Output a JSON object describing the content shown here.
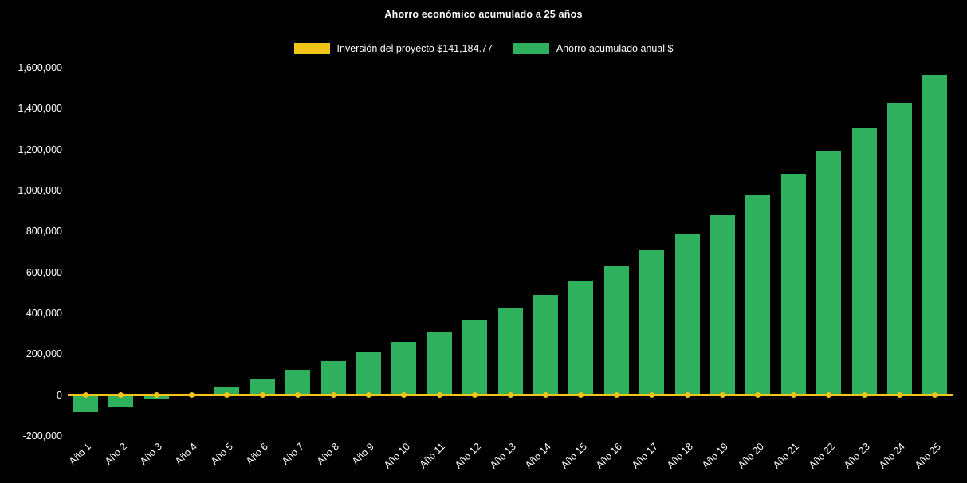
{
  "page": {
    "background": "#000000"
  },
  "chart_data": {
    "type": "bar",
    "title": "Ahorro económico acumulado a 25 años",
    "categories": [
      "Año 1",
      "Año 2",
      "Año 3",
      "Año 4",
      "Año 5",
      "Año 6",
      "Año 7",
      "Año 8",
      "Año 9",
      "Año 10",
      "Año 11",
      "Año 12",
      "Año 13",
      "Año 14",
      "Año 15",
      "Año 16",
      "Año 17",
      "Año 18",
      "Año 19",
      "Año 20",
      "Año 21",
      "Año 22",
      "Año 23",
      "Año 24",
      "Año 25"
    ],
    "series": [
      {
        "name": "Inversión del proyecto $141,184.77",
        "type": "line",
        "color": "#F0C419",
        "marker": "circle",
        "value": 0
      },
      {
        "name": "Ahorro acumulado anual $",
        "type": "bar",
        "color": "#2EB05C",
        "values": [
          -80000,
          -60000,
          -15000,
          5000,
          40000,
          82000,
          122000,
          165000,
          210000,
          258000,
          312000,
          368000,
          426000,
          490000,
          557000,
          630000,
          708000,
          790000,
          880000,
          975000,
          1080000,
          1190000,
          1305000,
          1430000,
          1565000
        ]
      }
    ],
    "ylim": [
      -200000,
      1600000
    ],
    "yticks": [
      -200000,
      0,
      200000,
      400000,
      600000,
      800000,
      1000000,
      1200000,
      1400000,
      1600000
    ],
    "grid": false,
    "legend_position": "top",
    "text_color": "#FFFFFF",
    "background": "#000000"
  }
}
